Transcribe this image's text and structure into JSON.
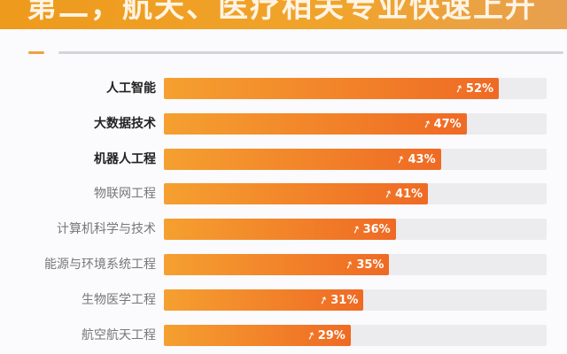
{
  "title": "第二，航天、医疗相关专业快速上升",
  "colors": {
    "bar_start": "#f5a030",
    "bar_end": "#ef6a24",
    "track": "#ececee",
    "banner": "#ee9a1c"
  },
  "chart_data": {
    "type": "bar",
    "orientation": "horizontal",
    "categories": [
      "人工智能",
      "大数据技术",
      "机器人工程",
      "物联网工程",
      "计算机科学与技术",
      "能源与环境系统工程",
      "生物医学工程",
      "航空航天工程"
    ],
    "values": [
      52,
      47,
      43,
      41,
      36,
      35,
      31,
      29
    ],
    "value_labels": [
      "52%",
      "47%",
      "43%",
      "41%",
      "36%",
      "35%",
      "31%",
      "29%"
    ],
    "bold_categories": 3,
    "value_icon": "rising-arrow-icon",
    "grid": false
  }
}
